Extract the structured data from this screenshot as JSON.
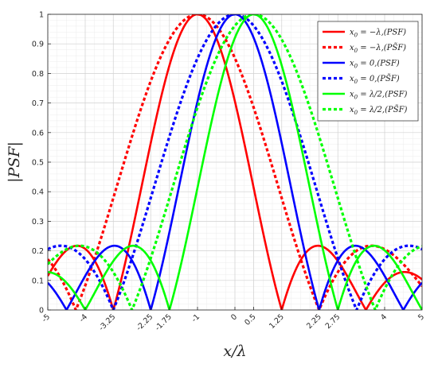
{
  "chart_data": {
    "type": "line",
    "xlabel": "x/λ",
    "ylabel": "|PSF|",
    "xlim": [
      -5,
      5
    ],
    "ylim": [
      0,
      1
    ],
    "xticks": [
      -5,
      -4,
      -3.25,
      -2.25,
      -1.75,
      -1,
      0,
      0.5,
      1.25,
      2.25,
      2.75,
      4,
      5
    ],
    "xtick_labels": [
      "-5",
      "-4",
      "-3.25",
      "-2.25",
      "-1.75",
      "-1",
      "0",
      "0.5",
      "1.25",
      "2.25",
      "2.75",
      "4",
      "5"
    ],
    "yticks": [
      0,
      0.1,
      0.2,
      0.3,
      0.4,
      0.5,
      0.6,
      0.7,
      0.8,
      0.9,
      1
    ],
    "ytick_labels": [
      "0",
      "0.1",
      "0.2",
      "0.3",
      "0.4",
      "0.5",
      "0.6",
      "0.7",
      "0.8",
      "0.9",
      "1"
    ],
    "grid": true,
    "minor_grid": true,
    "legend_position": "top-right",
    "series": [
      {
        "name": "x0 = −λ,(PSF)",
        "label_main": "x",
        "label_sub": "0",
        "label_rest": " = −λ,(PSF)",
        "color": "#ff0000",
        "style": "solid",
        "center": -1,
        "width": 2.25
      },
      {
        "name": "x0 = −λ,(PS̃F)",
        "label_main": "x",
        "label_sub": "0",
        "label_rest": " = −λ,(PS̃F)",
        "color": "#ff0000",
        "style": "dotted",
        "center": -1,
        "width": 3.25
      },
      {
        "name": "x0 = 0,(PSF)",
        "label_main": "x",
        "label_sub": "0",
        "label_rest": " = 0,(PSF)",
        "color": "#0000ff",
        "style": "solid",
        "center": 0,
        "width": 2.25
      },
      {
        "name": "x0 = 0,(PS̃F)",
        "label_main": "x",
        "label_sub": "0",
        "label_rest": " = 0,(PS̃F)",
        "color": "#0000ff",
        "style": "dotted",
        "center": 0,
        "width": 3.25
      },
      {
        "name": "x0 = λ/2,(PSF)",
        "label_main": "x",
        "label_sub": "0",
        "label_rest": " = λ/2,(PSF)",
        "color": "#00ff00",
        "style": "solid",
        "center": 0.5,
        "width": 2.25
      },
      {
        "name": "x0 = λ/2,(PS̃F)",
        "label_main": "x",
        "label_sub": "0",
        "label_rest": " = λ/2,(PS̃F)",
        "color": "#00ff00",
        "style": "dotted",
        "center": 0.5,
        "width": 3.25
      }
    ]
  }
}
